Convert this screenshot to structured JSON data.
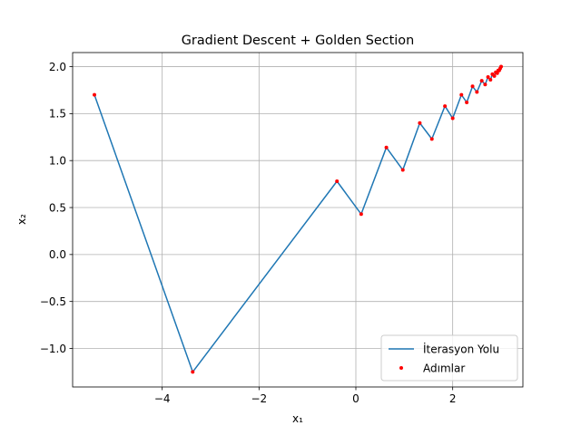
{
  "chart_data": {
    "type": "line",
    "title": "Gradient Descent + Golden Section",
    "xlabel": "x₁",
    "ylabel": "x₂",
    "xlim": [
      -5.85,
      3.45
    ],
    "ylim": [
      -1.41,
      2.15
    ],
    "xticks": [
      -4,
      -2,
      0,
      2
    ],
    "yticks": [
      -1.0,
      -0.5,
      0.0,
      0.5,
      1.0,
      1.5,
      2.0
    ],
    "xtick_labels": [
      "−4",
      "−2",
      "0",
      "2"
    ],
    "ytick_labels": [
      "−1.0",
      "−0.5",
      "0.0",
      "0.5",
      "1.0",
      "1.5",
      "2.0"
    ],
    "grid": true,
    "legend_position": "lower-right",
    "series": [
      {
        "name": "İterasyon Yolu",
        "kind": "line",
        "color": "#1f77b4",
        "x": [
          -5.4,
          -3.37,
          -0.39,
          0.11,
          0.63,
          0.97,
          1.32,
          1.57,
          1.84,
          2.0,
          2.18,
          2.29,
          2.41,
          2.5,
          2.6,
          2.67,
          2.73,
          2.78,
          2.82,
          2.86,
          2.89,
          2.92,
          2.94,
          2.96,
          2.98,
          3.0
        ],
        "y": [
          1.7,
          -1.25,
          0.78,
          0.43,
          1.14,
          0.9,
          1.4,
          1.23,
          1.58,
          1.45,
          1.7,
          1.62,
          1.79,
          1.73,
          1.85,
          1.81,
          1.89,
          1.86,
          1.92,
          1.9,
          1.94,
          1.93,
          1.96,
          1.96,
          1.98,
          2.0
        ]
      },
      {
        "name": "Adımlar",
        "kind": "scatter",
        "color": "#ff0000",
        "x": [
          -5.4,
          -3.37,
          -0.39,
          0.11,
          0.63,
          0.97,
          1.32,
          1.57,
          1.84,
          2.0,
          2.18,
          2.29,
          2.41,
          2.5,
          2.6,
          2.67,
          2.73,
          2.78,
          2.82,
          2.86,
          2.89,
          2.92,
          2.94,
          2.96,
          2.98,
          3.0
        ],
        "y": [
          1.7,
          -1.25,
          0.78,
          0.43,
          1.14,
          0.9,
          1.4,
          1.23,
          1.58,
          1.45,
          1.7,
          1.62,
          1.79,
          1.73,
          1.85,
          1.81,
          1.89,
          1.86,
          1.92,
          1.9,
          1.94,
          1.93,
          1.96,
          1.96,
          1.98,
          2.0
        ]
      }
    ]
  }
}
